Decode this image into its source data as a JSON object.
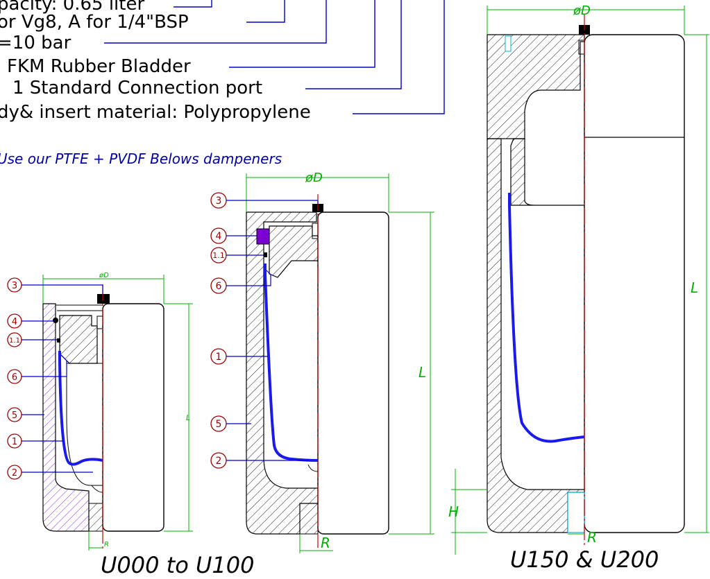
{
  "spec_lines": [
    "pacity: 0.65 liter",
    "or Vg8, A for 1/4\"BSP",
    "=10  bar",
    "FKM  Rubber  Bladder",
    "1  Standard  Connection  port",
    "dy&  insert  material:  Polypropylene"
  ],
  "note": "Use  our  PTFE  +  PVDF  Belows  dampeners",
  "small": {
    "dim_d": "øD",
    "dim_l": "L",
    "dim_r": "R",
    "balloons": [
      "3",
      "4",
      "1.1",
      "6",
      "5",
      "1",
      "2"
    ],
    "caption": "U000  to  U100"
  },
  "medium": {
    "dim_d": "øD",
    "dim_l": "L",
    "dim_r": "R",
    "balloons": [
      "3",
      "4",
      "1.1",
      "6",
      "1",
      "5",
      "2"
    ]
  },
  "large": {
    "dim_d": "øD",
    "dim_l": "L",
    "dim_r": "R",
    "dim_h": "H",
    "caption": "U150  &  U200"
  },
  "colors": {
    "leader": "#0000cc",
    "balloon": "#990000",
    "dimension": "#00b000",
    "centerline": "#cc0000",
    "bladder": "#1a1aee",
    "purple_body": "#8a2be2",
    "insert_ring": "#7b00d4",
    "cyan_port": "#00b0d0"
  }
}
